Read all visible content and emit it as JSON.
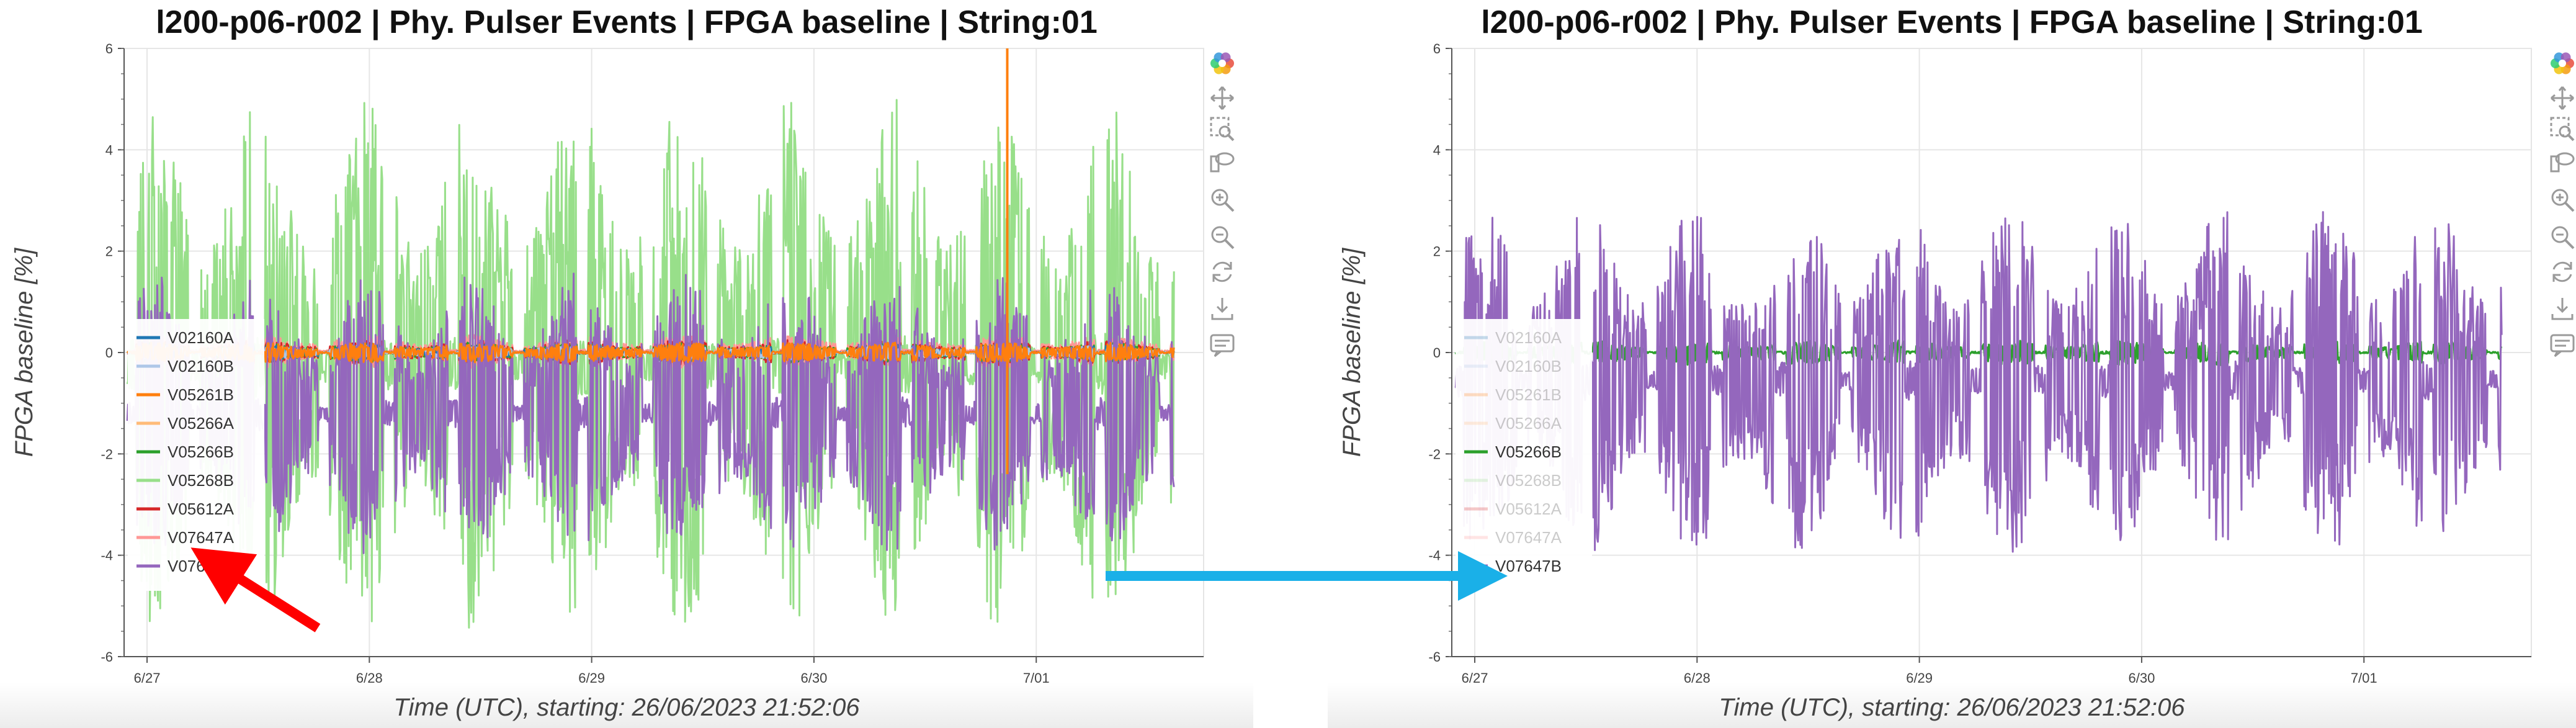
{
  "colors": {
    "V02160A": "#1f77b4",
    "V02160B": "#aec7e8",
    "V05261B": "#ff7f0e",
    "V05266A": "#ffbb78",
    "V05266B": "#2ca02c",
    "V05268B": "#98df8a",
    "V05612A": "#d62728",
    "V07647A": "#ff9896",
    "V07647B": "#9467bd",
    "red_arrow": "#ff0000",
    "blue_arrow": "#1ab0e8"
  },
  "toolbar_icons": [
    "bokeh-logo-icon",
    "pan-icon",
    "box-zoom-icon",
    "lasso-select-icon",
    "zoom-in-icon",
    "zoom-out-icon",
    "reset-icon",
    "save-icon",
    "hover-icon"
  ],
  "chart_data": [
    {
      "type": "line",
      "title": "l200-p06-r002 | Phy. Pulser Events | FPGA baseline | String:01",
      "xlabel": "Time (UTC), starting: 26/06/2023 21:52:06",
      "ylabel": "FPGA baseline [%]",
      "ylim": [
        -6,
        6
      ],
      "yticks": [
        "6",
        "4",
        "2",
        "0",
        "-2",
        "-4",
        "-6"
      ],
      "xlim_hours": [
        -0.35,
        116.2
      ],
      "xticks": [
        {
          "label": "6/27",
          "hours": 2.13
        },
        {
          "label": "6/28",
          "hours": 26.13
        },
        {
          "label": "6/29",
          "hours": 50.13
        },
        {
          "label": "6/30",
          "hours": 74.13
        },
        {
          "label": "7/01",
          "hours": 98.13
        }
      ],
      "grid": true,
      "legend_position": "bottom-left",
      "series": [
        {
          "name": "V02160A",
          "visible": true,
          "ranges": [
            [
              0,
              113,
              -0.15,
              0.15
            ]
          ]
        },
        {
          "name": "V02160B",
          "visible": true,
          "ranges": [
            [
              0,
              113,
              -0.15,
              0.15
            ]
          ]
        },
        {
          "name": "V05261B",
          "visible": true,
          "ranges": [
            [
              0,
              113,
              -0.2,
              0.2
            ]
          ],
          "spikes": [
            {
              "hours": 95,
              "from": -2.4,
              "to": 6
            }
          ]
        },
        {
          "name": "V05266A",
          "visible": true,
          "ranges": [
            [
              0,
              113,
              -0.1,
              0.1
            ]
          ]
        },
        {
          "name": "V05266B",
          "visible": true,
          "ranges": [
            [
              0,
              113,
              -0.2,
              0.2
            ]
          ]
        },
        {
          "name": "V05268B",
          "visible": true,
          "ranges": [
            [
              0,
              113,
              -5.5,
              5.0
            ]
          ]
        },
        {
          "name": "V05612A",
          "visible": true,
          "ranges": [
            [
              0,
              113,
              -0.25,
              0.25
            ]
          ]
        },
        {
          "name": "V07647A",
          "visible": true,
          "ranges": [
            [
              0,
              113,
              -0.3,
              0.35
            ]
          ]
        },
        {
          "name": "V07647B",
          "visible": true,
          "ranges": [
            [
              0,
              113,
              -4.0,
              1.6
            ]
          ]
        }
      ]
    },
    {
      "type": "line",
      "title": "l200-p06-r002 | Phy. Pulser Events | FPGA baseline | String:01",
      "xlabel": "Time (UTC), starting: 26/06/2023 21:52:06",
      "ylabel": "FPGA baseline [%]",
      "ylim": [
        -6,
        6
      ],
      "yticks": [
        "6",
        "4",
        "2",
        "0",
        "-2",
        "-4",
        "-6"
      ],
      "xlim_hours": [
        -0.35,
        116.2
      ],
      "xticks": [
        {
          "label": "6/27",
          "hours": 2.13
        },
        {
          "label": "6/28",
          "hours": 26.13
        },
        {
          "label": "6/29",
          "hours": 50.13
        },
        {
          "label": "6/30",
          "hours": 74.13
        },
        {
          "label": "7/01",
          "hours": 98.13
        }
      ],
      "grid": true,
      "legend_position": "bottom-left",
      "series": [
        {
          "name": "V02160A",
          "visible": false
        },
        {
          "name": "V02160B",
          "visible": false
        },
        {
          "name": "V05261B",
          "visible": false
        },
        {
          "name": "V05266A",
          "visible": false
        },
        {
          "name": "V05266B",
          "visible": true,
          "ranges": [
            [
              0,
              113,
              -0.25,
              0.25
            ]
          ]
        },
        {
          "name": "V05268B",
          "visible": false
        },
        {
          "name": "V05612A",
          "visible": false
        },
        {
          "name": "V07647A",
          "visible": false
        },
        {
          "name": "V07647B",
          "visible": true,
          "ranges": [
            [
              0,
              113,
              -4.0,
              2.9
            ]
          ]
        }
      ]
    }
  ]
}
